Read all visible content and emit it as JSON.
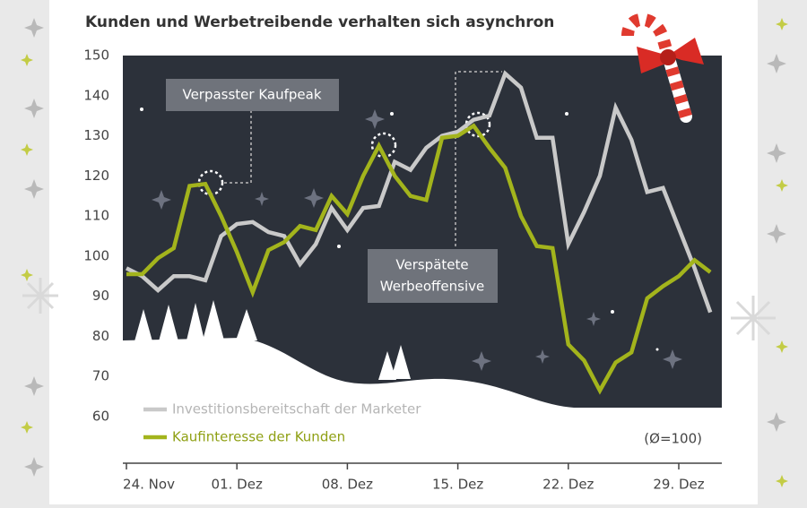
{
  "chart_data": {
    "type": "line",
    "title": "Kunden und Werbetreibende verhalten sich asynchron",
    "categories": [
      "24. Nov",
      null,
      null,
      null,
      null,
      null,
      null,
      "01. Dez",
      null,
      null,
      null,
      null,
      null,
      null,
      "08. Dez",
      null,
      null,
      null,
      null,
      null,
      null,
      "15. Dez",
      null,
      null,
      null,
      null,
      null,
      null,
      "22. Dez",
      null,
      null,
      null,
      null,
      null,
      null,
      "29. Dez",
      null,
      null
    ],
    "series": [
      {
        "name": "Investitionsbereitschaft der Marketer",
        "color": "#c9c9c9",
        "values": [
          97,
          95,
          91.5,
          95,
          95,
          94,
          105,
          108,
          108.5,
          106,
          105,
          98,
          103,
          112,
          106.5,
          112,
          112.5,
          123.5,
          121.5,
          127,
          130,
          131,
          134,
          135,
          145.5,
          142,
          129.5,
          129.5,
          103,
          111,
          120,
          137,
          129,
          116,
          117,
          107,
          97,
          86
        ]
      },
      {
        "name": "Kaufinteresse der Kunden",
        "color": "#a3b41c",
        "values": [
          95.5,
          95.5,
          99.5,
          102,
          117.5,
          118,
          110,
          101,
          91,
          101.5,
          103.5,
          107.5,
          106.5,
          115,
          110.5,
          120,
          127.5,
          120,
          115,
          114,
          129.5,
          130,
          132.5,
          127,
          122,
          110,
          102.5,
          102,
          78,
          74,
          66.5,
          73.5,
          76,
          89.5,
          92.5,
          95,
          99,
          96
        ]
      }
    ],
    "ylim": [
      60,
      150
    ],
    "yticks": [
      60,
      70,
      80,
      90,
      100,
      110,
      120,
      130,
      140,
      150
    ],
    "grid": false,
    "annotations": [
      "Verpasster Kaufpeak",
      "Verspätete",
      "Werbeoffensive"
    ],
    "note": "(Ø=100)"
  }
}
